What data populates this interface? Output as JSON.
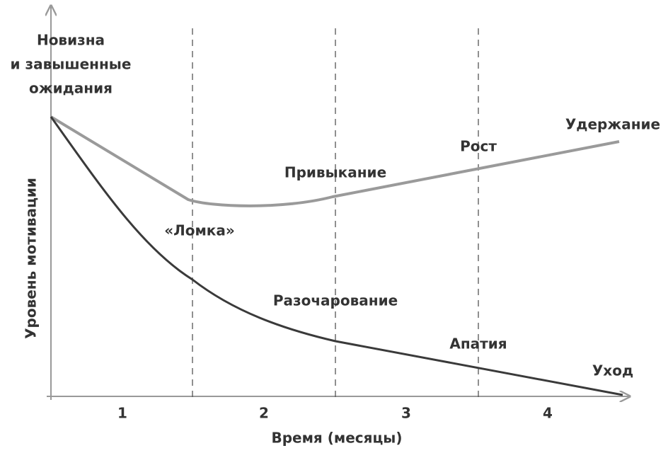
{
  "y_axis": {
    "title": "Уровень мотивации",
    "top_label": [
      "Новизна",
      "и завышенные",
      "ожидания"
    ]
  },
  "x_axis": {
    "title": "Время (месяцы)",
    "periods": [
      "1",
      "2",
      "3",
      "4"
    ]
  },
  "curves": {
    "upper": {
      "labels": [
        "Привыкание",
        "Рост",
        "Удержание"
      ]
    },
    "lower": {
      "labels": [
        "«Ломка»",
        "Разочарование",
        "Апатия",
        "Уход"
      ]
    }
  }
}
